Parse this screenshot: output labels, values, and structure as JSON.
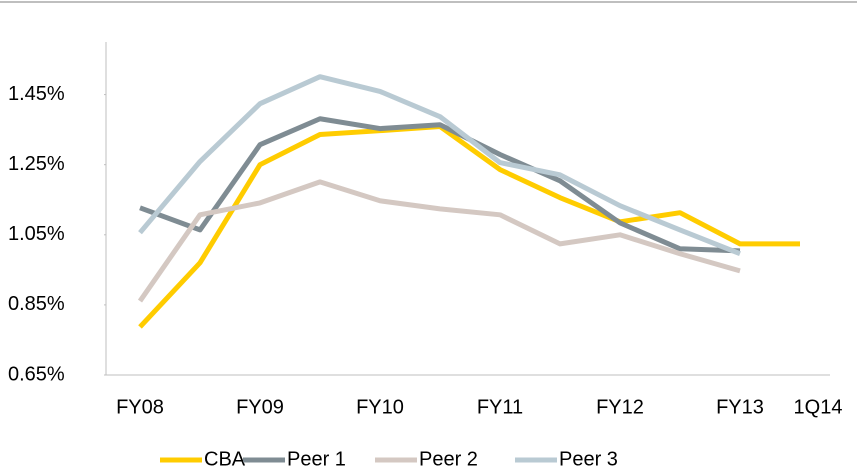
{
  "chart_data": {
    "type": "line",
    "categories": [
      "FY08",
      null,
      "FY09",
      null,
      "FY10",
      null,
      "FY11",
      null,
      "FY12",
      null,
      "FY13",
      "1Q14"
    ],
    "series": [
      {
        "name": "CBA",
        "color": "#ffcc00",
        "values": [
          0.787,
          0.97,
          1.25,
          1.336,
          1.347,
          1.359,
          1.236,
          1.156,
          1.087,
          1.113,
          1.024,
          1.024
        ]
      },
      {
        "name": "Peer 1",
        "color": "#7f8c93",
        "values": [
          1.127,
          1.064,
          1.307,
          1.381,
          1.353,
          1.364,
          1.279,
          1.204,
          1.084,
          1.01,
          1.004,
          null
        ]
      },
      {
        "name": "Peer 2",
        "color": "#d4c8c2",
        "values": [
          0.861,
          1.107,
          1.141,
          1.201,
          1.147,
          1.124,
          1.107,
          1.024,
          1.05,
          0.996,
          0.947,
          null
        ]
      },
      {
        "name": "Peer 3",
        "color": "#b9cad3",
        "values": [
          1.056,
          1.259,
          1.424,
          1.501,
          1.459,
          1.387,
          1.256,
          1.221,
          1.133,
          1.064,
          0.996,
          null
        ]
      }
    ],
    "ylim": [
      0.65,
      1.6
    ],
    "yticks": [
      {
        "value": 0.65,
        "label": "0.65%"
      },
      {
        "value": 0.85,
        "label": "0.85%"
      },
      {
        "value": 1.05,
        "label": "1.05%"
      },
      {
        "value": 1.25,
        "label": "1.25%"
      },
      {
        "value": 1.45,
        "label": "1.45%"
      }
    ],
    "grid": false,
    "legend": "bottom"
  }
}
